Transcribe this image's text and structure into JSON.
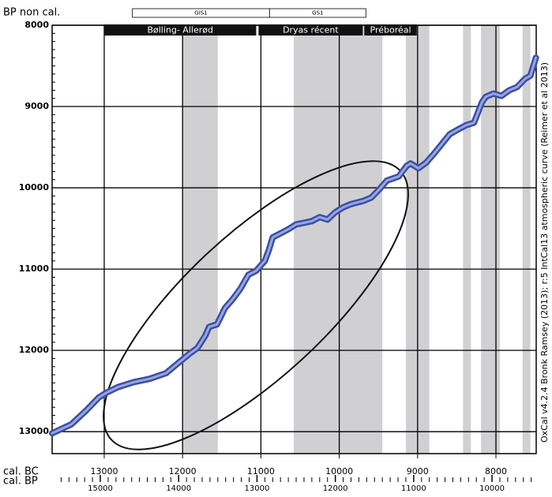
{
  "chart_data": {
    "type": "line",
    "ylabel": "BP non cal.",
    "xlabel": "cal. BC",
    "x2label": "cal. BP",
    "credit": "OxCal v4.2.4 Bronk Ramsey (2013); r:5 IntCal13 atmospheric curve (Reimer et al 2013)",
    "xlim": [
      13665,
      7486
    ],
    "xticks": [
      13000,
      12000,
      11000,
      10000,
      9000,
      8000
    ],
    "x2lim": [
      15615,
      9436
    ],
    "x2ticks": [
      15000,
      14000,
      13000,
      12000,
      11000,
      10000
    ],
    "ylim": [
      8000,
      13270
    ],
    "yticks": [
      8000,
      9000,
      10000,
      11000,
      12000,
      13000
    ],
    "y_inverted": true,
    "x_inverted": true,
    "grid": true,
    "bands": [
      [
        12000,
        11550
      ],
      [
        10580,
        9450
      ],
      [
        9150,
        8850
      ],
      [
        8420,
        8320
      ],
      [
        8190,
        7950
      ],
      [
        7660,
        7560
      ]
    ],
    "band_color": "#d0d0d2",
    "stages": [
      {
        "label": "GIS1",
        "start": 12640,
        "end": 10890
      },
      {
        "label": "GS1",
        "start": 10890,
        "end": 9660
      }
    ],
    "periods": [
      {
        "label": "Bølling- Allerød",
        "start": 13000,
        "end": 11060
      },
      {
        "label": "Dryas récent",
        "start": 11030,
        "end": 9700
      },
      {
        "label": "Préboréal",
        "start": 9680,
        "end": 9010
      }
    ],
    "series": [
      {
        "color": "#3a4fa8",
        "inner_color": "#9aa6dc",
        "x": [
          13665,
          13420,
          13220,
          13070,
          12970,
          12820,
          12620,
          12420,
          12210,
          12060,
          11910,
          11810,
          11710,
          11660,
          11560,
          11460,
          11360,
          11260,
          11160,
          11060,
          10950,
          10900,
          10850,
          10750,
          10650,
          10550,
          10450,
          10350,
          10250,
          10150,
          10050,
          9950,
          9850,
          9690,
          9590,
          9490,
          9390,
          9240,
          9140,
          9090,
          8990,
          8890,
          8790,
          8690,
          8590,
          8480,
          8380,
          8280,
          8180,
          8130,
          8030,
          7930,
          7830,
          7730,
          7630,
          7560,
          7490
        ],
        "values": [
          13020,
          12910,
          12730,
          12580,
          12520,
          12450,
          12390,
          12350,
          12280,
          12160,
          12040,
          11970,
          11820,
          11710,
          11680,
          11480,
          11370,
          11240,
          11070,
          11020,
          10900,
          10770,
          10610,
          10560,
          10510,
          10450,
          10430,
          10410,
          10360,
          10390,
          10300,
          10240,
          10200,
          10160,
          10120,
          10020,
          9910,
          9860,
          9730,
          9700,
          9760,
          9690,
          9580,
          9460,
          9340,
          9280,
          9230,
          9200,
          8950,
          8880,
          8840,
          8870,
          8800,
          8760,
          8660,
          8620,
          8400
        ]
      }
    ]
  }
}
